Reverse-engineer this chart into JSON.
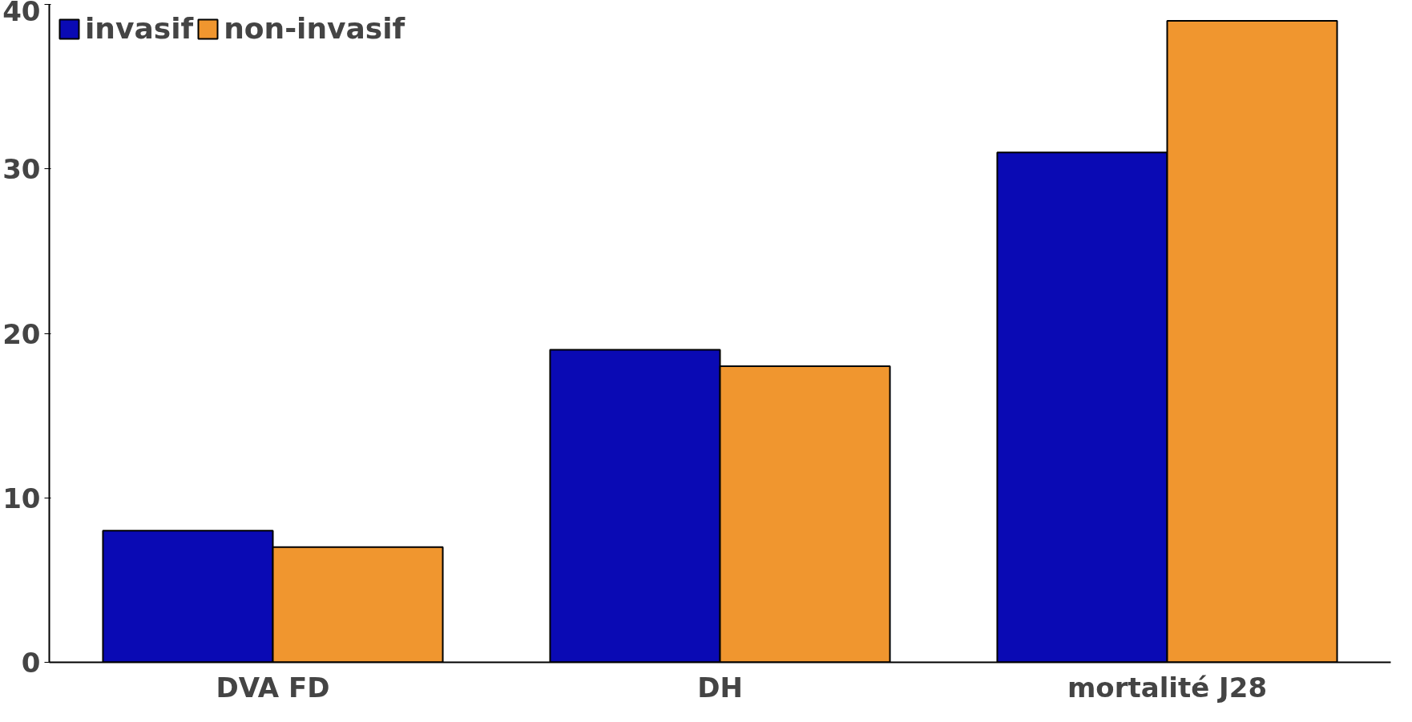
{
  "chart_data": {
    "type": "bar",
    "categories": [
      "DVA FD",
      "DH",
      "mortalité J28"
    ],
    "series": [
      {
        "name": "invasif",
        "color": "#0a0ab4",
        "values": [
          8,
          19,
          31
        ]
      },
      {
        "name": "non-invasif",
        "color": "#f0962f",
        "values": [
          7,
          18,
          39
        ]
      }
    ],
    "ylim": [
      0,
      40
    ],
    "yticks": [
      0,
      10,
      20,
      30,
      40
    ],
    "grid": false,
    "legend": "top left"
  }
}
